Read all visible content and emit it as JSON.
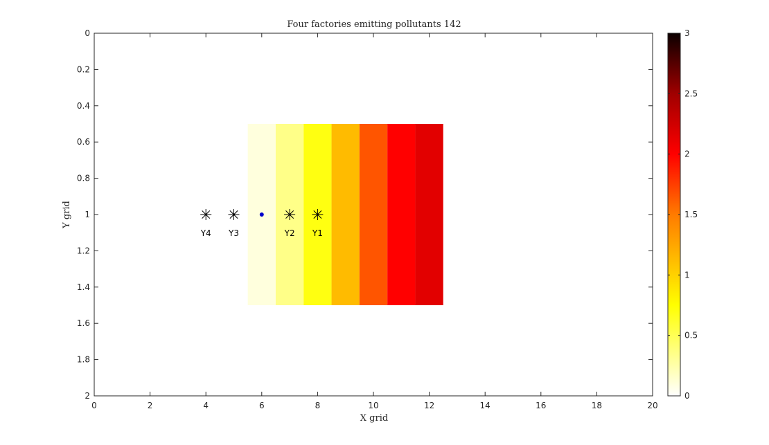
{
  "chart_data": {
    "type": "heatmap",
    "title": "Four factories emitting pollutants 142",
    "xlabel": "X grid",
    "ylabel": "Y grid",
    "xlim": [
      0,
      20
    ],
    "ylim": [
      0,
      2
    ],
    "y_reversed": true,
    "xticks": [
      "0",
      "2",
      "4",
      "6",
      "8",
      "10",
      "12",
      "14",
      "16",
      "18",
      "20"
    ],
    "yticks": [
      "0",
      "0.2",
      "0.4",
      "0.6",
      "0.8",
      "1",
      "1.2",
      "1.4",
      "1.6",
      "1.8",
      "2"
    ],
    "heatmap": {
      "y_range": [
        0.5,
        1.5
      ],
      "cells": [
        {
          "x": 6,
          "value": 0.1
        },
        {
          "x": 7,
          "value": 0.35
        },
        {
          "x": 8,
          "value": 0.7
        },
        {
          "x": 9,
          "value": 1.05
        },
        {
          "x": 10,
          "value": 1.5
        },
        {
          "x": 11,
          "value": 1.9
        },
        {
          "x": 12,
          "value": 2.05
        }
      ]
    },
    "factories": [
      {
        "label": "Y4",
        "x": 4,
        "y": 1
      },
      {
        "label": "Y3",
        "x": 5,
        "y": 1
      },
      {
        "label": "Y2",
        "x": 7,
        "y": 1
      },
      {
        "label": "Y1",
        "x": 8,
        "y": 1
      }
    ],
    "receptor_point": {
      "x": 6,
      "y": 1,
      "color": "#0000cc"
    },
    "colorbar": {
      "colormap": "hot (reversed)",
      "range": [
        0,
        3
      ],
      "ticks": [
        "0",
        "0.5",
        "1",
        "1.5",
        "2",
        "2.5",
        "3"
      ]
    },
    "grid": false,
    "colors": {
      "axis": "#262626",
      "marker": "#000000"
    }
  }
}
